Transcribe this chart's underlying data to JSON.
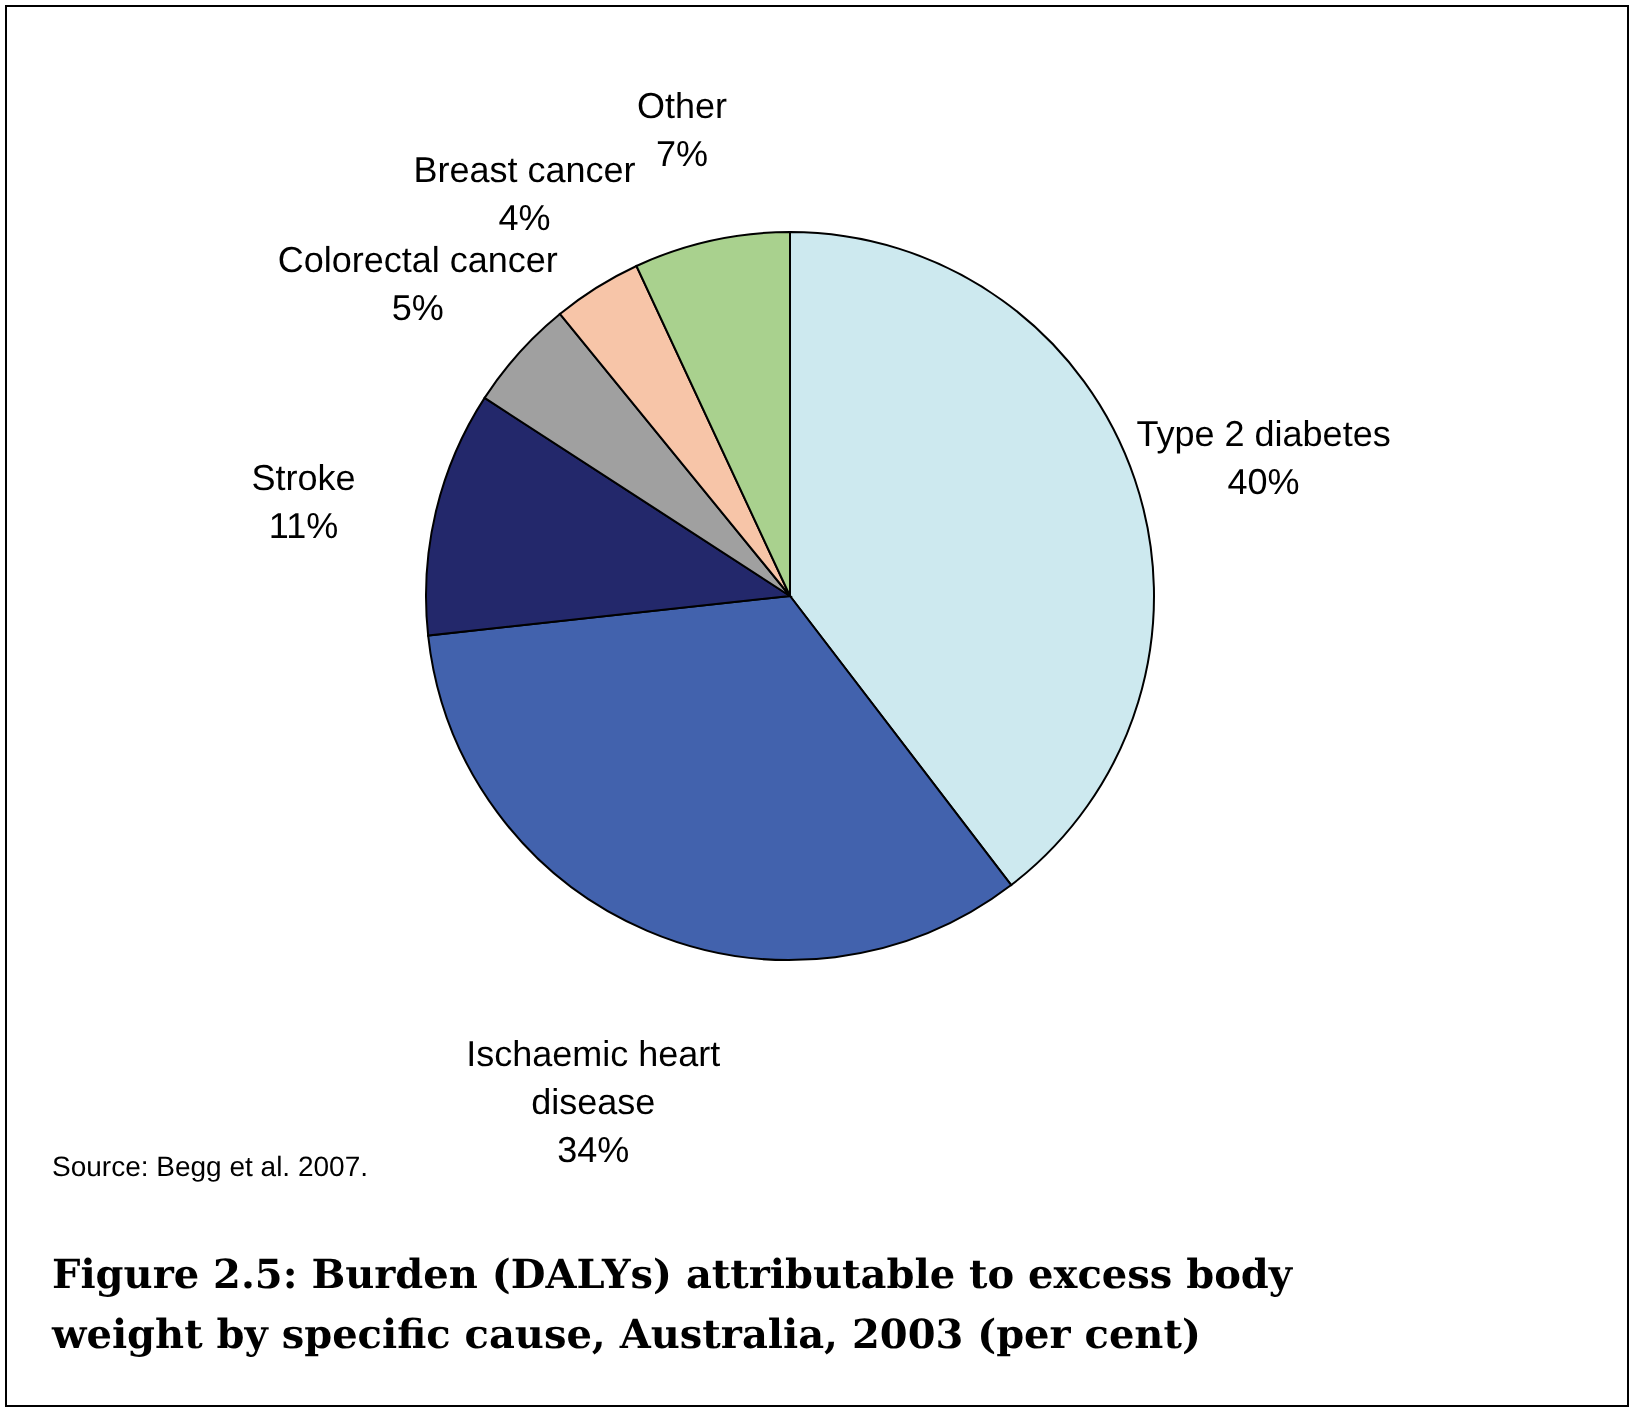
{
  "chart_data": {
    "type": "pie",
    "title": "Figure 2.5: Burden (DALYs) attributable to excess body weight by specific cause, Australia, 2003 (per cent)",
    "categories": [
      "Type 2 diabetes",
      "Ischaemic heart disease",
      "Stroke",
      "Colorectal cancer",
      "Breast cancer",
      "Other"
    ],
    "values": [
      40,
      34,
      11,
      5,
      4,
      7
    ],
    "value_labels": [
      "40%",
      "34%",
      "11%",
      "5%",
      "4%",
      "7%"
    ],
    "colors": [
      "#cde9ef",
      "#4262ad",
      "#23286b",
      "#a0a0a0",
      "#f7c5a8",
      "#a9d18e"
    ],
    "annotations": [
      "Source: Begg et al. 2007."
    ]
  }
}
